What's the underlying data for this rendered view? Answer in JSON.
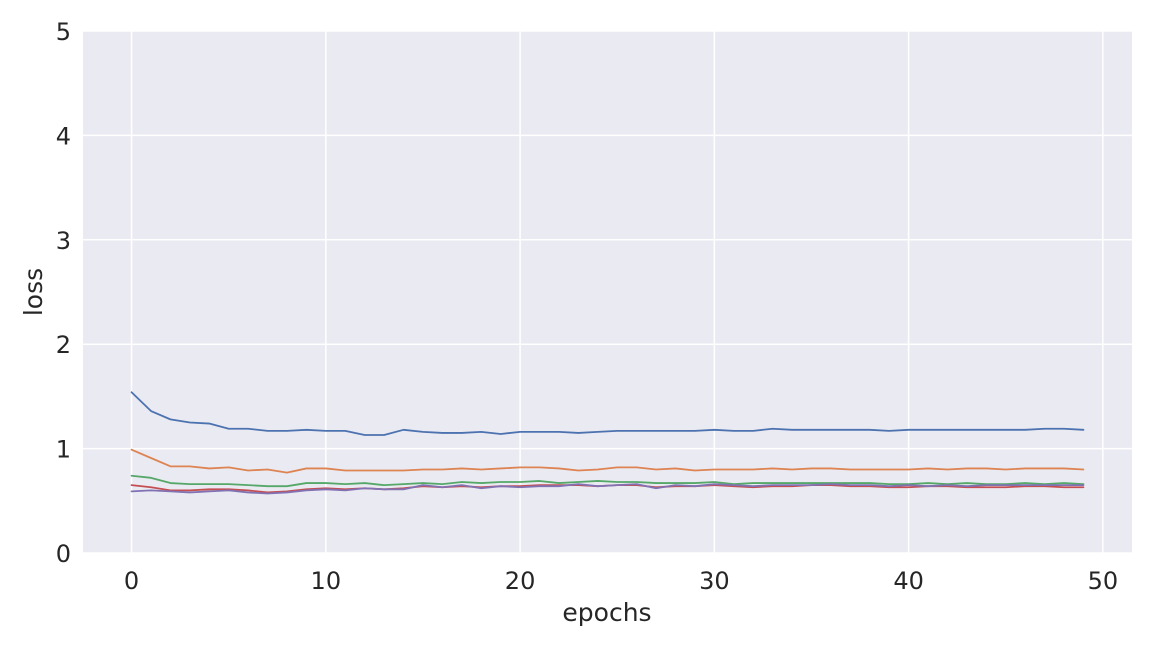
{
  "chart_data": {
    "type": "line",
    "title": "",
    "xlabel": "epochs",
    "ylabel": "loss",
    "xlim": [
      -2.5,
      51.5
    ],
    "ylim": [
      0,
      5
    ],
    "grid": true,
    "x_ticks": [
      0,
      10,
      20,
      30,
      40,
      50
    ],
    "y_ticks": [
      0,
      1,
      2,
      3,
      4,
      5
    ],
    "colors": [
      "#4c72b0",
      "#dd8452",
      "#55a868",
      "#c44e52",
      "#8172b3"
    ],
    "x": [
      0,
      1,
      2,
      3,
      4,
      5,
      6,
      7,
      8,
      9,
      10,
      11,
      12,
      13,
      14,
      15,
      16,
      17,
      18,
      19,
      20,
      21,
      22,
      23,
      24,
      25,
      26,
      27,
      28,
      29,
      30,
      31,
      32,
      33,
      34,
      35,
      36,
      37,
      38,
      39,
      40,
      41,
      42,
      43,
      44,
      45,
      46,
      47,
      48,
      49
    ],
    "series": [
      {
        "values": [
          1.54,
          1.36,
          1.28,
          1.25,
          1.24,
          1.19,
          1.19,
          1.17,
          1.17,
          1.18,
          1.17,
          1.17,
          1.13,
          1.13,
          1.18,
          1.16,
          1.15,
          1.15,
          1.16,
          1.14,
          1.16,
          1.16,
          1.16,
          1.15,
          1.16,
          1.17,
          1.17,
          1.17,
          1.17,
          1.17,
          1.18,
          1.17,
          1.17,
          1.19,
          1.18,
          1.18,
          1.18,
          1.18,
          1.18,
          1.17,
          1.18,
          1.18,
          1.18,
          1.18,
          1.18,
          1.18,
          1.18,
          1.19,
          1.19,
          1.18
        ]
      },
      {
        "values": [
          0.99,
          0.91,
          0.83,
          0.83,
          0.81,
          0.82,
          0.79,
          0.8,
          0.77,
          0.81,
          0.81,
          0.79,
          0.79,
          0.79,
          0.79,
          0.8,
          0.8,
          0.81,
          0.8,
          0.81,
          0.82,
          0.82,
          0.81,
          0.79,
          0.8,
          0.82,
          0.82,
          0.8,
          0.81,
          0.79,
          0.8,
          0.8,
          0.8,
          0.81,
          0.8,
          0.81,
          0.81,
          0.8,
          0.8,
          0.8,
          0.8,
          0.81,
          0.8,
          0.81,
          0.81,
          0.8,
          0.81,
          0.81,
          0.81,
          0.8
        ]
      },
      {
        "values": [
          0.74,
          0.72,
          0.67,
          0.66,
          0.66,
          0.66,
          0.65,
          0.64,
          0.64,
          0.67,
          0.67,
          0.66,
          0.67,
          0.65,
          0.66,
          0.67,
          0.66,
          0.68,
          0.67,
          0.68,
          0.68,
          0.69,
          0.67,
          0.68,
          0.69,
          0.68,
          0.68,
          0.67,
          0.67,
          0.67,
          0.68,
          0.66,
          0.67,
          0.67,
          0.67,
          0.67,
          0.67,
          0.67,
          0.67,
          0.66,
          0.66,
          0.67,
          0.66,
          0.67,
          0.66,
          0.66,
          0.67,
          0.66,
          0.67,
          0.66
        ]
      },
      {
        "values": [
          0.65,
          0.63,
          0.6,
          0.6,
          0.61,
          0.61,
          0.6,
          0.58,
          0.59,
          0.61,
          0.62,
          0.61,
          0.62,
          0.61,
          0.62,
          0.64,
          0.63,
          0.64,
          0.63,
          0.64,
          0.64,
          0.65,
          0.65,
          0.65,
          0.64,
          0.65,
          0.65,
          0.63,
          0.64,
          0.64,
          0.65,
          0.64,
          0.63,
          0.64,
          0.64,
          0.65,
          0.65,
          0.64,
          0.64,
          0.63,
          0.63,
          0.64,
          0.64,
          0.63,
          0.63,
          0.63,
          0.64,
          0.64,
          0.63,
          0.63
        ]
      },
      {
        "values": [
          0.59,
          0.6,
          0.59,
          0.58,
          0.59,
          0.6,
          0.58,
          0.57,
          0.58,
          0.6,
          0.61,
          0.6,
          0.62,
          0.61,
          0.61,
          0.65,
          0.63,
          0.65,
          0.62,
          0.64,
          0.63,
          0.64,
          0.64,
          0.66,
          0.64,
          0.65,
          0.66,
          0.62,
          0.65,
          0.64,
          0.66,
          0.65,
          0.64,
          0.65,
          0.65,
          0.65,
          0.66,
          0.65,
          0.65,
          0.64,
          0.65,
          0.64,
          0.65,
          0.64,
          0.65,
          0.65,
          0.65,
          0.65,
          0.65,
          0.65
        ]
      }
    ]
  }
}
